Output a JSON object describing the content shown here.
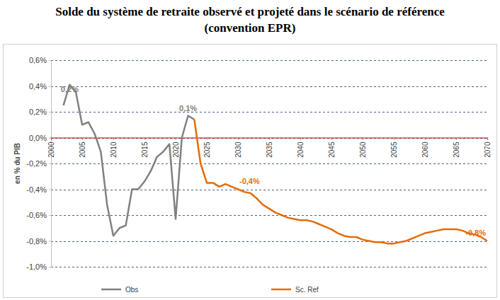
{
  "chart_data": {
    "type": "line",
    "title": "Solde du système de retraite observé et projeté dans le scénario de référence",
    "subtitle": "(convention EPR)",
    "y_label": "en % du PIB",
    "x": [
      2002,
      2003,
      2004,
      2005,
      2006,
      2007,
      2008,
      2009,
      2010,
      2011,
      2012,
      2013,
      2014,
      2015,
      2016,
      2017,
      2018,
      2019,
      2020,
      2021,
      2022,
      2023,
      2024,
      2025,
      2026,
      2027,
      2028,
      2029,
      2030,
      2031,
      2032,
      2033,
      2034,
      2035,
      2036,
      2037,
      2038,
      2039,
      2040,
      2041,
      2042,
      2043,
      2044,
      2045,
      2046,
      2047,
      2048,
      2049,
      2050,
      2051,
      2052,
      2053,
      2054,
      2055,
      2056,
      2057,
      2058,
      2059,
      2060,
      2061,
      2062,
      2063,
      2064,
      2065,
      2066,
      2067,
      2068,
      2069,
      2070
    ],
    "series": [
      {
        "name": "Obs",
        "color": "#808080",
        "line_style": "solid",
        "values": [
          0.25,
          0.41,
          0.35,
          0.1,
          0.12,
          0.03,
          -0.11,
          -0.52,
          -0.76,
          -0.7,
          -0.68,
          -0.4,
          -0.4,
          -0.34,
          -0.26,
          -0.15,
          -0.11,
          -0.05,
          -0.63,
          0.0,
          0.17,
          0.14,
          null,
          null,
          null,
          null,
          null,
          null,
          null,
          null,
          null,
          null,
          null,
          null,
          null,
          null,
          null,
          null,
          null,
          null,
          null,
          null,
          null,
          null,
          null,
          null,
          null,
          null,
          null,
          null,
          null,
          null,
          null,
          null,
          null,
          null,
          null,
          null,
          null,
          null,
          null,
          null,
          null,
          null,
          null,
          null,
          null,
          null,
          null
        ]
      },
      {
        "name": "Sc. Ref",
        "color": "#e46c0a",
        "line_style": "solid",
        "values": [
          null,
          null,
          null,
          null,
          null,
          null,
          null,
          null,
          null,
          null,
          null,
          null,
          null,
          null,
          null,
          null,
          null,
          null,
          null,
          null,
          null,
          0.14,
          -0.2,
          -0.35,
          -0.35,
          -0.38,
          -0.36,
          -0.38,
          -0.4,
          -0.42,
          -0.43,
          -0.47,
          -0.52,
          -0.55,
          -0.58,
          -0.6,
          -0.62,
          -0.63,
          -0.64,
          -0.64,
          -0.65,
          -0.67,
          -0.69,
          -0.71,
          -0.74,
          -0.76,
          -0.77,
          -0.77,
          -0.79,
          -0.8,
          -0.81,
          -0.81,
          -0.82,
          -0.82,
          -0.81,
          -0.8,
          -0.78,
          -0.76,
          -0.74,
          -0.73,
          -0.72,
          -0.71,
          -0.71,
          -0.71,
          -0.72,
          -0.74,
          -0.75,
          -0.77,
          -0.8
        ]
      }
    ],
    "xlim": [
      2000,
      2070
    ],
    "xticks": [
      2000,
      2005,
      2010,
      2015,
      2020,
      2025,
      2030,
      2035,
      2040,
      2045,
      2050,
      2055,
      2060,
      2065,
      2070
    ],
    "ylim": [
      -1.0,
      0.6
    ],
    "yticks": [
      {
        "value": -1.0,
        "label": "-1,0%"
      },
      {
        "value": -0.8,
        "label": "-0,8%"
      },
      {
        "value": -0.6,
        "label": "-0,6%"
      },
      {
        "value": -0.4,
        "label": "-0,4%"
      },
      {
        "value": -0.2,
        "label": "-0,2%"
      },
      {
        "value": 0.0,
        "label": "0,0%"
      },
      {
        "value": 0.2,
        "label": "0,2%"
      },
      {
        "value": 0.4,
        "label": "0,4%"
      },
      {
        "value": 0.6,
        "label": "0,6%"
      }
    ],
    "annotations": [
      {
        "text": "0,2%",
        "x": 2003,
        "y": 0.32,
        "color": "#808080"
      },
      {
        "text": "0,1%",
        "x": 2022,
        "y": 0.17,
        "color": "#808080"
      },
      {
        "text": "-0,4%",
        "x": 2030,
        "y": -0.4,
        "color": "#e46c0a"
      },
      {
        "text": "-0,8%",
        "x": 2070,
        "y": -0.8,
        "color": "#e46c0a"
      }
    ],
    "grid": true,
    "legend": "bottom"
  }
}
